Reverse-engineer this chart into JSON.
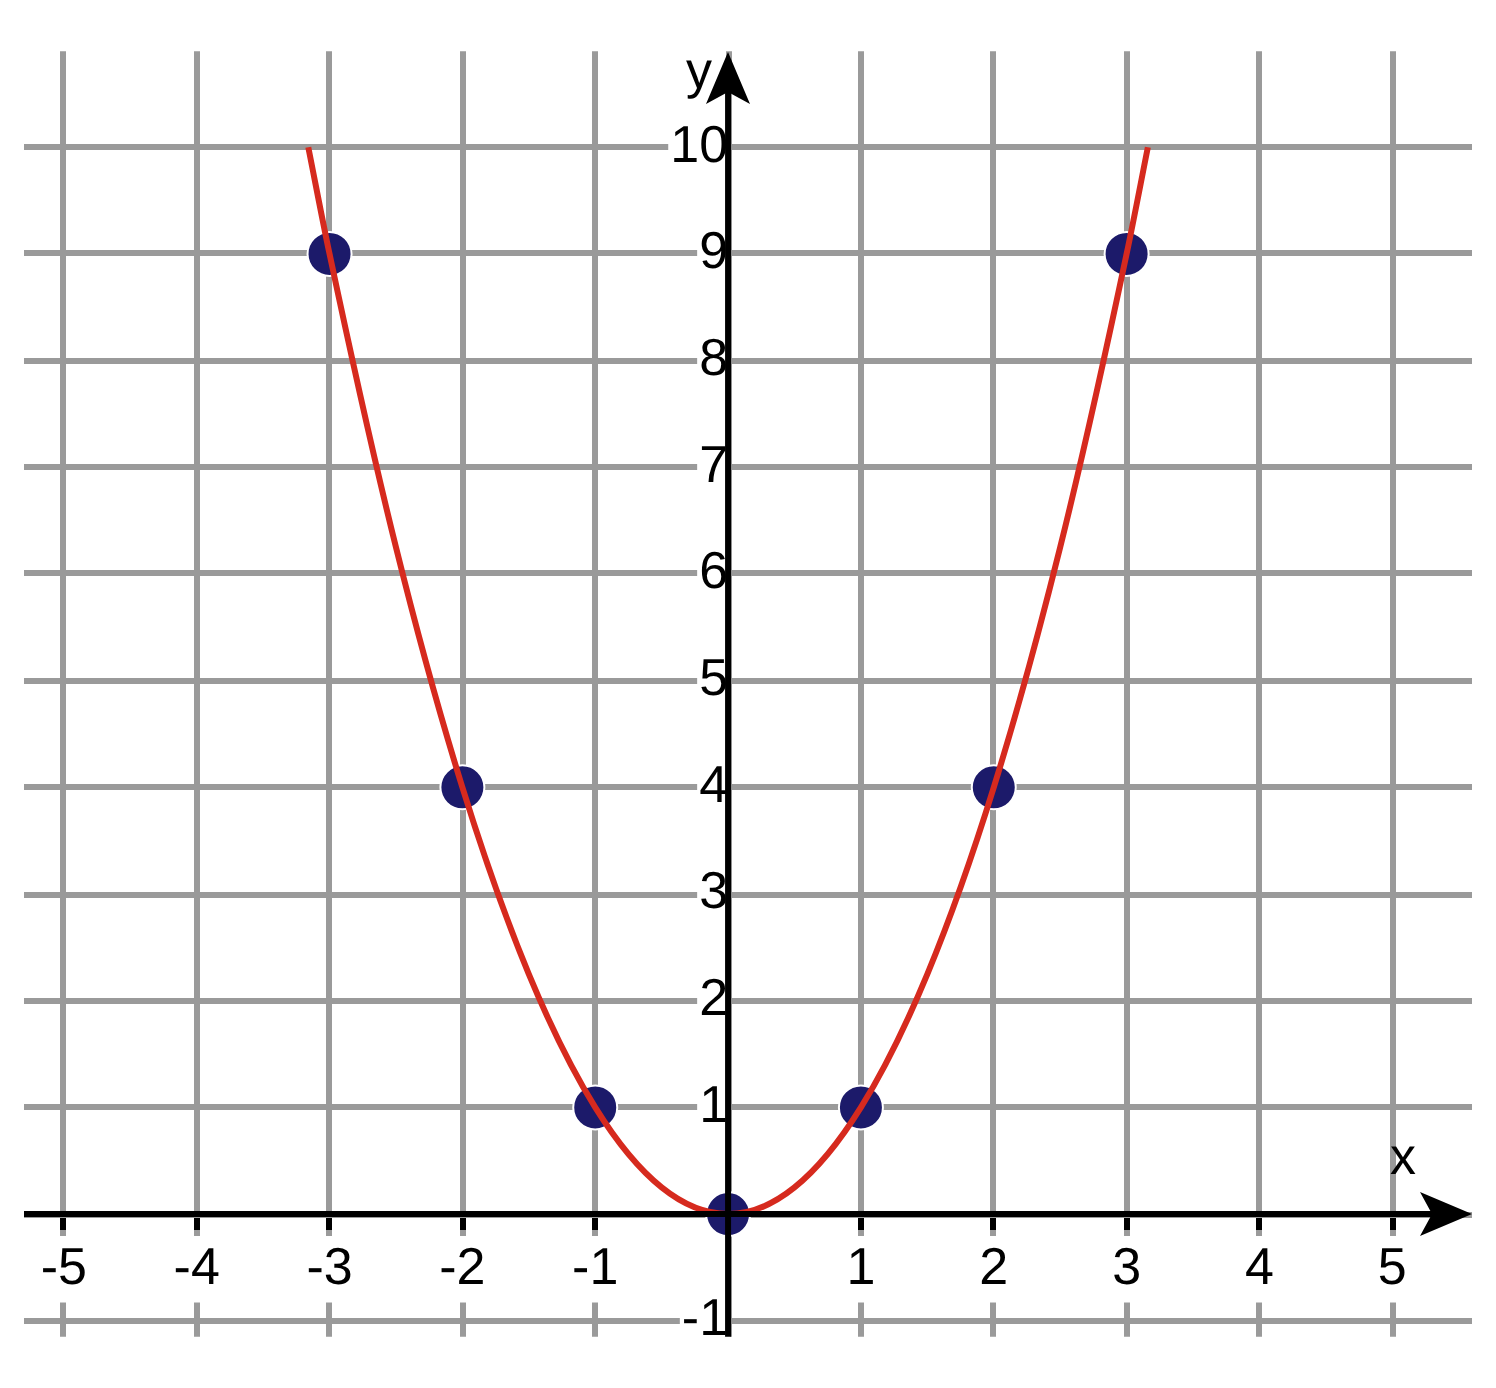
{
  "chart_data": {
    "type": "line",
    "xlabel": "x",
    "ylabel": "y",
    "xlim": [
      -5.3,
      5.6
    ],
    "ylim": [
      -1.15,
      10.9
    ],
    "xticks": [
      -5,
      -4,
      -3,
      -2,
      -1,
      {
        "value": 0,
        "label": null
      },
      1,
      2,
      3,
      4,
      5
    ],
    "yticks": [
      -1,
      {
        "value": 0,
        "label": null
      },
      1,
      2,
      3,
      4,
      5,
      6,
      7,
      8,
      9,
      10
    ],
    "grid": true,
    "legend": false,
    "series": [
      {
        "color": "#d62a1e",
        "marker": "none",
        "x": [
          -3.16,
          -3,
          -2.5,
          -2,
          -1.5,
          -1,
          -0.5,
          0,
          0.5,
          1,
          1.5,
          2,
          2.5,
          3,
          3.16
        ],
        "values": [
          10,
          9,
          6.25,
          4,
          2.25,
          1,
          0.25,
          0,
          0.25,
          1,
          2.25,
          4,
          6.25,
          9,
          10
        ]
      },
      {
        "type": "scatter",
        "color": "#1c1a6a",
        "marker": "circle",
        "x": [
          -3,
          -2,
          -1,
          0,
          1,
          2,
          3
        ],
        "values": [
          9,
          4,
          1,
          0,
          1,
          4,
          9
        ]
      }
    ]
  }
}
